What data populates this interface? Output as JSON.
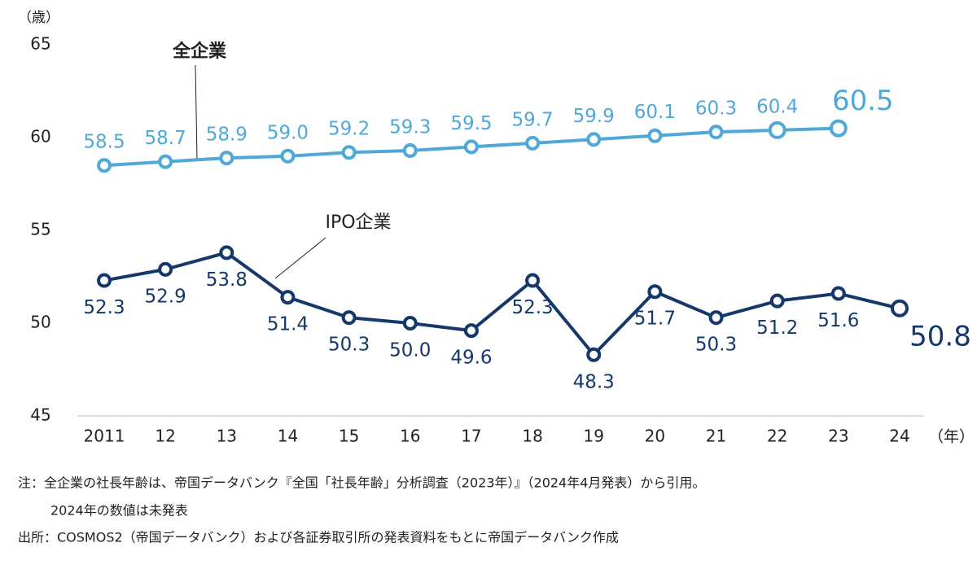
{
  "chart_data": {
    "type": "line",
    "y_label": "（歳）",
    "x_label": "（年）",
    "categories": [
      "2011",
      "12",
      "13",
      "14",
      "15",
      "16",
      "17",
      "18",
      "19",
      "20",
      "21",
      "22",
      "23",
      "24"
    ],
    "series": [
      {
        "name": "全企業",
        "color": "#4ea8d8",
        "values": [
          58.5,
          58.7,
          58.9,
          59.0,
          59.2,
          59.3,
          59.5,
          59.7,
          59.9,
          60.1,
          60.3,
          60.4,
          60.5,
          null
        ],
        "value_labels": [
          "58.5",
          "58.7",
          "58.9",
          "59.0",
          "59.2",
          "59.3",
          "59.5",
          "59.7",
          "59.9",
          "60.1",
          "60.3",
          "60.4",
          "60.5",
          null
        ]
      },
      {
        "name": "IPO企業",
        "color": "#15386a",
        "values": [
          52.3,
          52.9,
          53.8,
          51.4,
          50.3,
          50.0,
          49.6,
          52.3,
          48.3,
          51.7,
          50.3,
          51.2,
          51.6,
          50.8
        ],
        "value_labels": [
          "52.3",
          "52.9",
          "53.8",
          "51.4",
          "50.3",
          "50.0",
          "49.6",
          "52.3",
          "48.3",
          "51.7",
          "50.3",
          "51.2",
          "51.6",
          "50.8"
        ]
      }
    ],
    "ylim": [
      45,
      65
    ],
    "yticks": [
      45,
      50,
      55,
      60,
      65
    ],
    "notes": [
      "注：全企業の社長年齢は、帝国データバンク『全国「社長年齢」分析調査（2023年）』（2024年4月発表）から引用。",
      "2024年の数値は未発表",
      "出所：COSMOS2（帝国データバンク）および各証券取引所の発表資料をもとに帝国データバンク作成"
    ]
  }
}
